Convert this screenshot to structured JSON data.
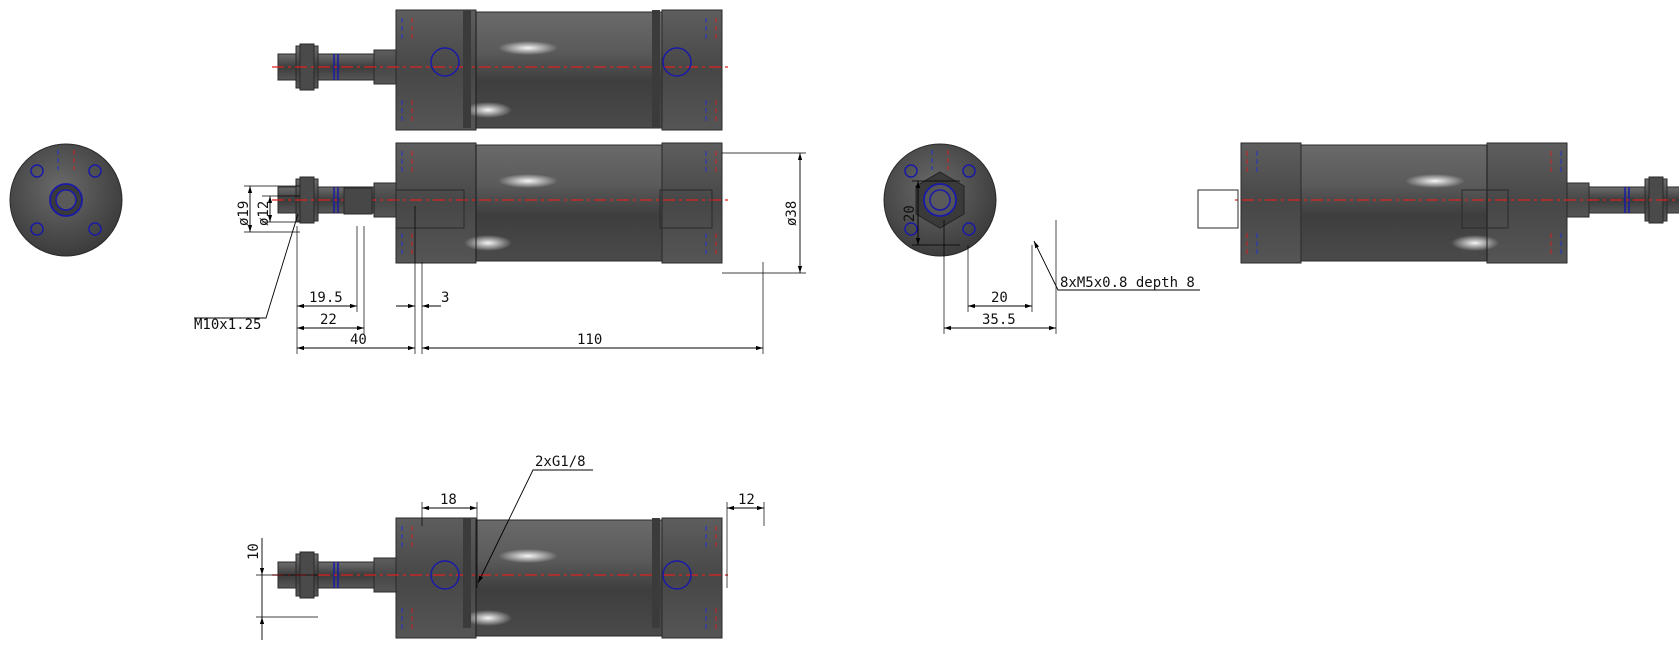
{
  "drawing": {
    "colors": {
      "background": "#ffffff",
      "body_metal": "#4d4d4d",
      "hidden_blue": "#1a1aa8",
      "center_red": "#dd2222",
      "dimension": "#000000"
    },
    "labels": {
      "dia_19": "ø19",
      "dia_12": "ø12",
      "dia_38": "ø38",
      "thread": "M10x1.25",
      "len_19_5": "19.5",
      "len_22": "22",
      "len_40": "40",
      "len_110": "110",
      "len_3": "3",
      "h_20": "20",
      "w_20": "20",
      "w_35_5": "35.5",
      "mount_holes": "8xM5x0.8 depth 8",
      "ports": "2xG1/8",
      "port_18": "18",
      "port_12": "12",
      "h_10": "10"
    }
  }
}
